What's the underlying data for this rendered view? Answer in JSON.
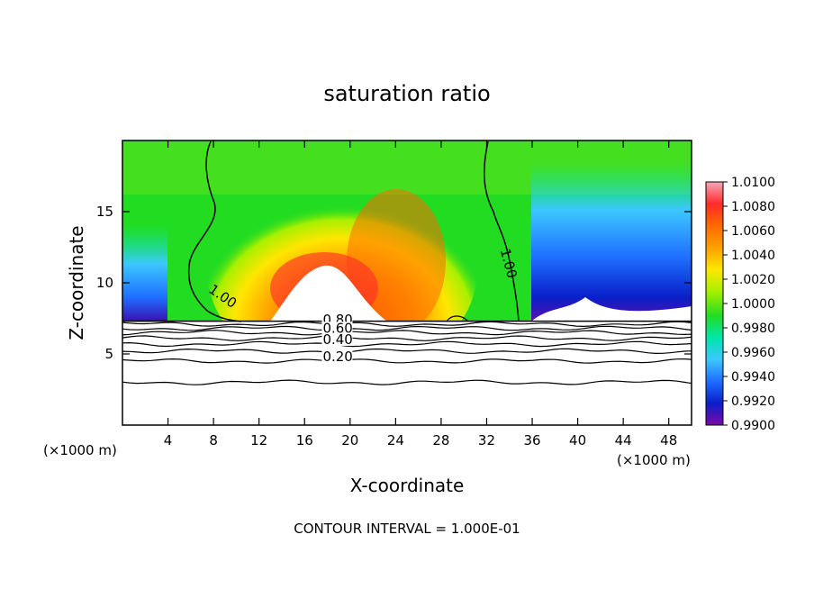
{
  "chart_data": {
    "type": "heatmap",
    "title": "saturation ratio",
    "xlabel": "X-coordinate",
    "ylabel": "Z-coordinate",
    "x_unit_left": "(×1000 m)",
    "x_unit_right": "(×1000 m)",
    "footer": "CONTOUR INTERVAL = 1.000E-01",
    "xlim": [
      0,
      50
    ],
    "ylim": [
      0,
      20
    ],
    "x_ticks": [
      "4",
      "8",
      "12",
      "16",
      "20",
      "24",
      "28",
      "32",
      "36",
      "40",
      "44",
      "48"
    ],
    "y_ticks": [
      "5",
      "10",
      "15"
    ],
    "colorbar": {
      "labels": [
        "1.0100",
        "1.0080",
        "1.0060",
        "1.0040",
        "1.0020",
        "1.0000",
        "0.9980",
        "0.9960",
        "0.9940",
        "0.9920",
        "0.9900"
      ],
      "range": [
        0.99,
        1.01
      ],
      "colors": [
        "#f7a8b8",
        "#ff2a2a",
        "#ff6a00",
        "#ffa000",
        "#ffe600",
        "#a8f000",
        "#22dc22",
        "#00e6a8",
        "#3cc8ff",
        "#1e6eff",
        "#0a1ec8",
        "#7a0aa8"
      ]
    },
    "contour_labels": [
      {
        "text": "1.00",
        "x": 7.5,
        "y": 9.4
      },
      {
        "text": "1.00",
        "x": 33.2,
        "y": 12.3
      },
      {
        "text": "0.80",
        "x": 17.6,
        "y": 7.1
      },
      {
        "text": "0.60",
        "x": 17.6,
        "y": 6.5
      },
      {
        "text": "0.40",
        "x": 17.6,
        "y": 5.7
      },
      {
        "text": "0.20",
        "x": 17.6,
        "y": 4.5
      }
    ],
    "cloud_base": 7.3,
    "contours_below": [
      7.1,
      6.8,
      6.5,
      6.1,
      5.7,
      5.2,
      4.5,
      3.0
    ]
  }
}
